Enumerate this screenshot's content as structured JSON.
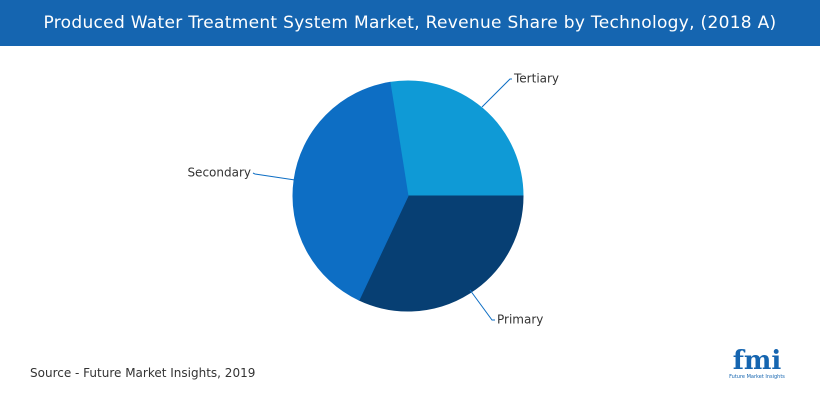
{
  "chart_data": {
    "type": "pie",
    "title": "Produced Water Treatment System Market, Revenue Share by Technology, (2018 A)",
    "categories": [
      "Tertiary",
      "Primary",
      "Secondary"
    ],
    "values": [
      27.5,
      32,
      40.5
    ],
    "colors": [
      "#0f9ad6",
      "#073f73",
      "#0d6ec4"
    ],
    "source": "Source - Future Market Insights, 2019"
  },
  "logo": {
    "text": "fmi",
    "subtext": "Future Market Insights"
  }
}
